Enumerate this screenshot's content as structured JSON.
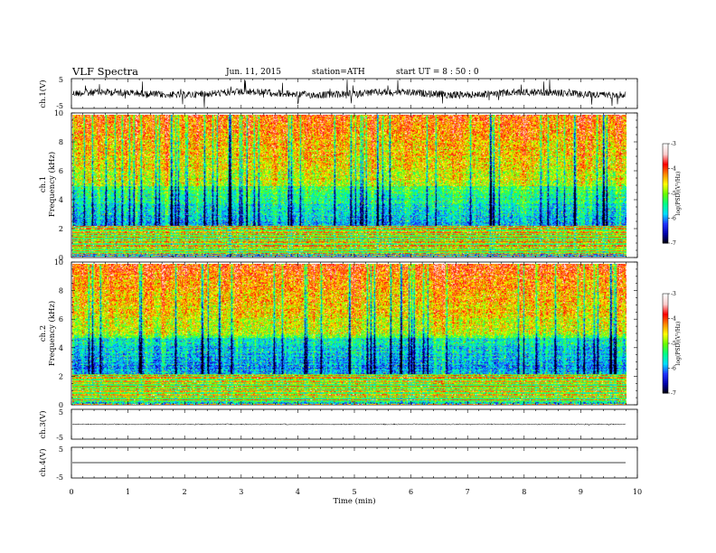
{
  "chart_data": {
    "type": "heatmap",
    "title": "VLF  Spectra",
    "header": {
      "date": "Jun. 11, 2015",
      "station": "station=ATH",
      "start": "start  UT =   8 : 50 : 0"
    },
    "xlabel": "Time  (min)",
    "xlim": [
      0,
      10
    ],
    "xticks": [
      "0",
      "1",
      "2",
      "3",
      "4",
      "5",
      "6",
      "7",
      "8",
      "9",
      "10"
    ],
    "data_end_min": 9.8,
    "panels": [
      {
        "id": "ch1_wave",
        "kind": "waveform",
        "ylabel": "ch.1(V)",
        "ylim": [
          -5,
          5
        ],
        "yticks": [
          "5",
          "-5"
        ],
        "noise": "high"
      },
      {
        "id": "ch1_spec",
        "kind": "spectrogram",
        "ylabel_top": "ch.1",
        "ylabel": "Frequency  (kHz)",
        "ylim": [
          0,
          10
        ],
        "yticks": [
          "0",
          "2",
          "4",
          "6",
          "8",
          "10"
        ]
      },
      {
        "id": "ch2_spec",
        "kind": "spectrogram",
        "ylabel_top": "ch.2",
        "ylabel": "Frequency  (kHz)",
        "ylim": [
          0,
          10
        ],
        "yticks": [
          "0",
          "2",
          "4",
          "6",
          "8",
          "10"
        ]
      },
      {
        "id": "ch3_wave",
        "kind": "waveform",
        "ylabel": "ch.3(V)",
        "ylim": [
          -5,
          5
        ],
        "yticks": [
          "5",
          "-5"
        ],
        "noise": "low"
      },
      {
        "id": "ch4_wave",
        "kind": "waveform",
        "ylabel": "ch.4(V)",
        "ylim": [
          -5,
          5
        ],
        "yticks": [
          "5",
          "-5"
        ],
        "noise": "none"
      }
    ],
    "colorbar": {
      "label": "log(PSD)(V²/Hz)",
      "range": [
        -7,
        -3
      ],
      "ticks": [
        "-3",
        "-4",
        "-5",
        "-6",
        "-7"
      ],
      "colors": [
        "#000000",
        "#0000aa",
        "#2233ff",
        "#00ddff",
        "#00ff88",
        "#66ff00",
        "#ffff00",
        "#ff8800",
        "#ff0000",
        "#ffcccc",
        "#ffffff"
      ]
    }
  }
}
